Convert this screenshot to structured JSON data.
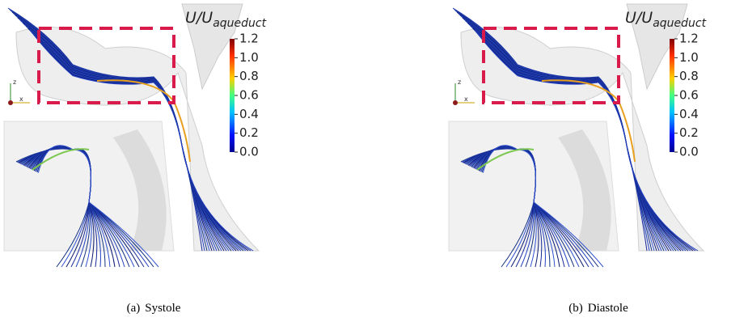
{
  "colorbar": {
    "title": {
      "main": "U/U",
      "subscript": "aqueduct"
    },
    "range": [
      0,
      1.2
    ],
    "ticks": [
      {
        "value": 0,
        "label": "0.0"
      },
      {
        "value": 0.2,
        "label": "0.2"
      },
      {
        "value": 0.4,
        "label": "0.4"
      },
      {
        "value": 0.6,
        "label": "0.6"
      },
      {
        "value": 0.8,
        "label": "0.8"
      },
      {
        "value": 1,
        "label": "1.0"
      },
      {
        "value": 1.2,
        "label": "1.2"
      }
    ]
  },
  "panels": [
    {
      "label": "(a)",
      "caption": "Systole",
      "axes_labels": [
        "z",
        "x"
      ]
    },
    {
      "label": "(b)",
      "caption": "Diastole",
      "axes_labels": [
        "z",
        "x"
      ]
    }
  ]
}
